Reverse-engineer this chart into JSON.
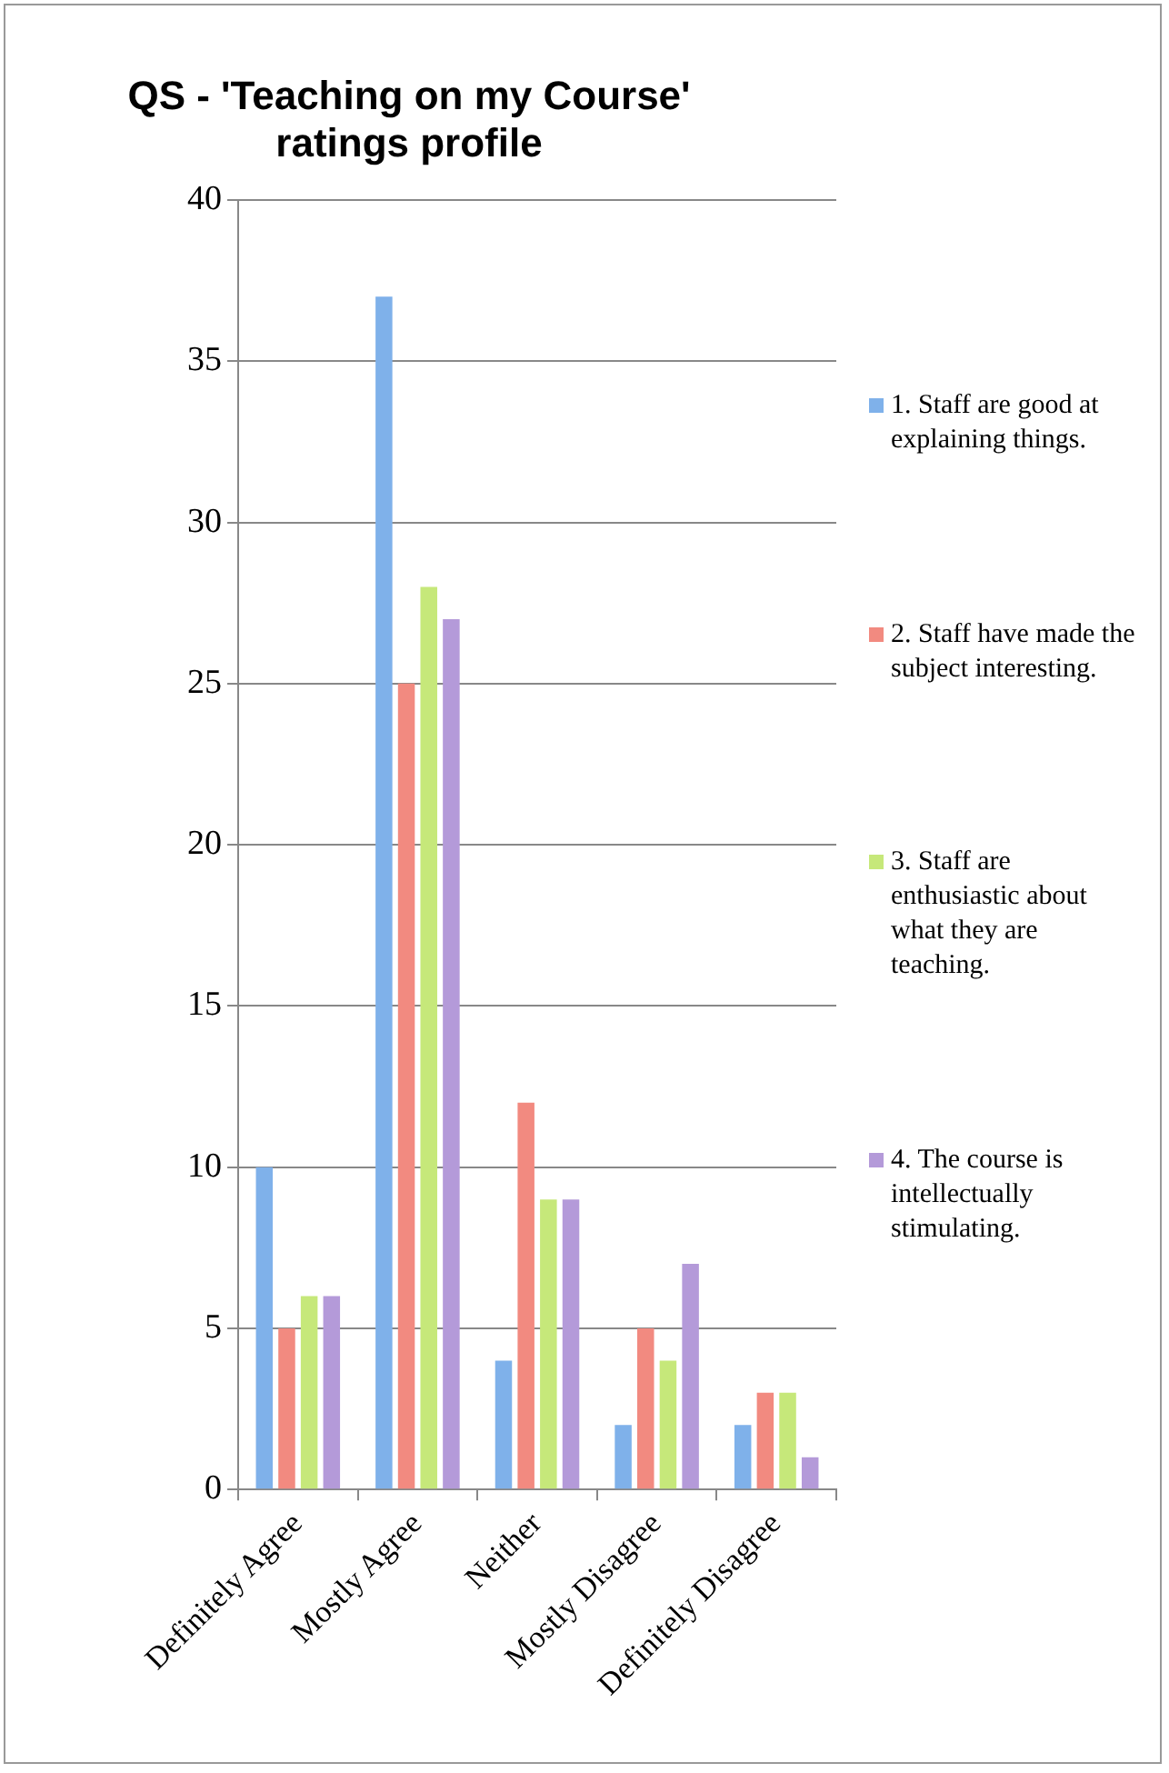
{
  "chart_data": {
    "type": "bar",
    "title": "QS - 'Teaching on my Course' ratings profile",
    "categories": [
      "Definitely Agree",
      "Mostly Agree",
      "Neither",
      "Mostly Disagree",
      "Definitely Disagree"
    ],
    "series": [
      {
        "name": "1. Staff are good at explaining things.",
        "color": "#7fb1ea",
        "values": [
          10,
          37,
          4,
          2,
          2
        ]
      },
      {
        "name": "2. Staff have made the subject interesting.",
        "color": "#f28a80",
        "values": [
          5,
          25,
          12,
          5,
          3
        ]
      },
      {
        "name": "3. Staff are enthusiastic about what they are teaching.",
        "color": "#c6e87a",
        "values": [
          6,
          28,
          9,
          4,
          3
        ]
      },
      {
        "name": "4. The course is intellectually stimulating.",
        "color": "#b49ad9",
        "values": [
          6,
          27,
          9,
          7,
          1
        ]
      }
    ],
    "ylim": [
      0,
      40
    ],
    "yticks": [
      0,
      5,
      10,
      15,
      20,
      25,
      30,
      35,
      40
    ],
    "grid": "y",
    "legend": "right"
  }
}
